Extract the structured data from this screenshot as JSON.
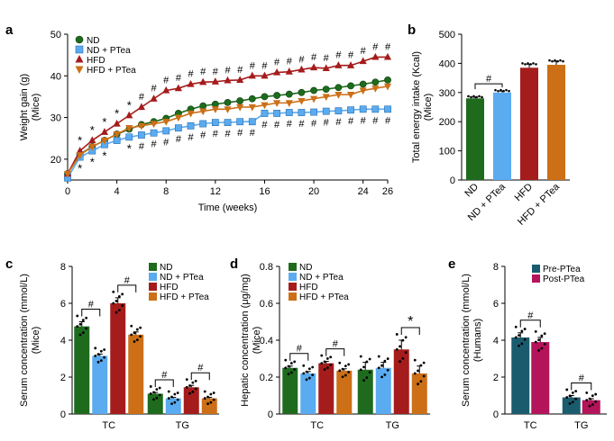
{
  "colors": {
    "ND": "#1e6b1e",
    "NDP": "#5aabf0",
    "HFD": "#a51c1c",
    "HFDP": "#cc6f17",
    "Pre": "#1a5c6e",
    "Post": "#b3145a"
  },
  "chart_data": [
    {
      "panel": "a",
      "type": "line",
      "xlabel": "Time (weeks)",
      "ylabel": "Weight gain (g)",
      "ylabel2": "(Mice)",
      "xlim": [
        0,
        26
      ],
      "ylim": [
        15,
        50
      ],
      "xticks": [
        "0",
        "4",
        "8",
        "12",
        "16",
        "20",
        "24",
        "26"
      ],
      "yticks": [
        "20",
        "30",
        "40",
        "50"
      ],
      "x": [
        0,
        1,
        2,
        3,
        4,
        5,
        6,
        7,
        8,
        9,
        10,
        11,
        12,
        13,
        14,
        15,
        16,
        17,
        18,
        19,
        20,
        21,
        22,
        23,
        24,
        25,
        26
      ],
      "series": [
        {
          "name": "ND",
          "marker": "circle",
          "values": [
            16.5,
            21.2,
            23.0,
            24.5,
            26.0,
            27.2,
            28.3,
            29.0,
            29.8,
            31.0,
            32.0,
            32.8,
            33.2,
            33.6,
            34.0,
            34.5,
            35.0,
            35.3,
            35.6,
            36.0,
            36.5,
            36.8,
            37.2,
            37.6,
            38.0,
            38.5,
            39.0
          ]
        },
        {
          "name": "ND + PTea",
          "marker": "square",
          "values": [
            15.5,
            20.5,
            22.0,
            23.5,
            24.5,
            25.3,
            25.8,
            26.3,
            26.8,
            27.5,
            28.0,
            28.5,
            28.8,
            28.8,
            29.0,
            29.0,
            31.0,
            31.0,
            31.2,
            31.2,
            31.3,
            31.5,
            31.6,
            31.8,
            32.0,
            32.0,
            32.0
          ]
        },
        {
          "name": "HFD",
          "marker": "triangle",
          "values": [
            16.5,
            22.0,
            24.5,
            26.5,
            28.5,
            30.5,
            32.5,
            34.5,
            36.5,
            37.0,
            38.0,
            38.5,
            38.6,
            38.9,
            39.0,
            40.0,
            40.0,
            40.8,
            41.0,
            41.5,
            42.0,
            41.8,
            42.5,
            42.5,
            43.5,
            44.5,
            44.5
          ]
        },
        {
          "name": "HFD + PTea",
          "marker": "triangle-down",
          "values": [
            16.5,
            21.0,
            23.0,
            24.5,
            26.0,
            27.5,
            28.0,
            28.5,
            29.0,
            30.0,
            31.0,
            31.5,
            32.0,
            32.0,
            32.5,
            32.5,
            33.0,
            33.5,
            33.5,
            34.0,
            34.5,
            35.0,
            35.5,
            35.5,
            36.5,
            37.0,
            37.5
          ]
        }
      ],
      "annotations": {
        "hash_top": [
          "#",
          "#",
          "#",
          "#",
          "#",
          "#",
          "#",
          "#",
          "#",
          "#",
          "#",
          "#",
          "#",
          "#",
          "#",
          "#",
          "#",
          "#",
          "#",
          "#",
          "#"
        ],
        "star_top": [
          "*",
          "*",
          "*",
          "*",
          "*"
        ],
        "hash_bottom": [
          "#",
          "#",
          "#",
          "#",
          "#",
          "#",
          "#",
          "#",
          "#",
          "#",
          "#",
          "#",
          "#",
          "#",
          "#",
          "#",
          "#",
          "#",
          "#",
          "#",
          "#"
        ],
        "star_bottom": [
          "*",
          "*",
          "*",
          "*"
        ]
      }
    },
    {
      "panel": "b",
      "type": "bar",
      "ylabel": "Total energy intake (Kcal)",
      "ylabel2": "(Mice)",
      "ylim": [
        0,
        500
      ],
      "yticks": [
        "0",
        "100",
        "200",
        "300",
        "400",
        "500"
      ],
      "categories": [
        "ND",
        "ND + PTea",
        "HFD",
        "HFD + PTea"
      ],
      "values": [
        280,
        300,
        385,
        395
      ],
      "errors": [
        4,
        5,
        12,
        12
      ],
      "sig": [
        {
          "pair": [
            0,
            1
          ],
          "label": "#"
        }
      ]
    },
    {
      "panel": "c",
      "type": "bar",
      "ylabel": "Serum concentration (mmol/L)",
      "ylabel2": "(Mice)",
      "ylim": [
        0,
        8
      ],
      "yticks": [
        "0",
        "2",
        "4",
        "6",
        "8"
      ],
      "groups": [
        "TC",
        "TG"
      ],
      "series": [
        {
          "name": "ND",
          "values": [
            4.75,
            1.1
          ],
          "errors": [
            0.25,
            0.07
          ]
        },
        {
          "name": "ND + PTea",
          "values": [
            3.15,
            0.85
          ],
          "errors": [
            0.1,
            0.05
          ]
        },
        {
          "name": "HFD",
          "values": [
            6.0,
            1.45
          ],
          "errors": [
            0.3,
            0.1
          ]
        },
        {
          "name": "HFD + PTea",
          "values": [
            4.3,
            0.85
          ],
          "errors": [
            0.15,
            0.05
          ]
        }
      ],
      "legend": [
        "ND",
        "ND + PTea",
        "HFD",
        "HFD + PTea"
      ],
      "sig": [
        {
          "group": 0,
          "pair": [
            0,
            1
          ],
          "label": "#"
        },
        {
          "group": 0,
          "pair": [
            2,
            3
          ],
          "label": "#"
        },
        {
          "group": 1,
          "pair": [
            0,
            1
          ],
          "label": "#"
        },
        {
          "group": 1,
          "pair": [
            2,
            3
          ],
          "label": "#"
        }
      ]
    },
    {
      "panel": "d",
      "type": "bar",
      "ylabel": "Hepatic concentration (μg/mg)",
      "ylabel2": "(Mice)",
      "ylim": [
        0,
        0.8
      ],
      "yticks": [
        "0",
        "0.2",
        "0.4",
        "0.6",
        "0.8"
      ],
      "groups": [
        "TC",
        "TG"
      ],
      "series": [
        {
          "name": "ND",
          "values": [
            0.25,
            0.24
          ],
          "errors": [
            0.01,
            0.04
          ]
        },
        {
          "name": "ND + PTea",
          "values": [
            0.22,
            0.25
          ],
          "errors": [
            0.01,
            0.03
          ]
        },
        {
          "name": "HFD",
          "values": [
            0.275,
            0.35
          ],
          "errors": [
            0.01,
            0.05
          ]
        },
        {
          "name": "HFD + PTea",
          "values": [
            0.235,
            0.22
          ],
          "errors": [
            0.01,
            0.04
          ]
        }
      ],
      "legend": [
        "ND",
        "ND + PTea",
        "HFD",
        "HFD + PTea"
      ],
      "sig": [
        {
          "group": 0,
          "pair": [
            0,
            1
          ],
          "label": "#"
        },
        {
          "group": 0,
          "pair": [
            2,
            3
          ],
          "label": "#"
        },
        {
          "group": 1,
          "pair": [
            2,
            3
          ],
          "label": "*"
        }
      ]
    },
    {
      "panel": "e",
      "type": "bar",
      "ylabel": "Serum concentration (mmol/L)",
      "ylabel2": "(Humans)",
      "ylim": [
        0,
        8
      ],
      "yticks": [
        "0",
        "2",
        "4",
        "6",
        "8"
      ],
      "groups": [
        "TC",
        "TG"
      ],
      "series": [
        {
          "name": "Pre-PTea",
          "values": [
            4.15,
            0.9
          ],
          "errors": [
            0.25,
            0.1
          ]
        },
        {
          "name": "Post-PTea",
          "values": [
            3.9,
            0.75
          ],
          "errors": [
            0.25,
            0.08
          ]
        }
      ],
      "legend": [
        "Pre-PTea",
        "Post-PTea"
      ],
      "sig": [
        {
          "group": 0,
          "pair": [
            0,
            1
          ],
          "label": "#"
        },
        {
          "group": 1,
          "pair": [
            0,
            1
          ],
          "label": "#"
        }
      ]
    }
  ],
  "panel_letters": {
    "a": "a",
    "b": "b",
    "c": "c",
    "d": "d",
    "e": "e"
  }
}
